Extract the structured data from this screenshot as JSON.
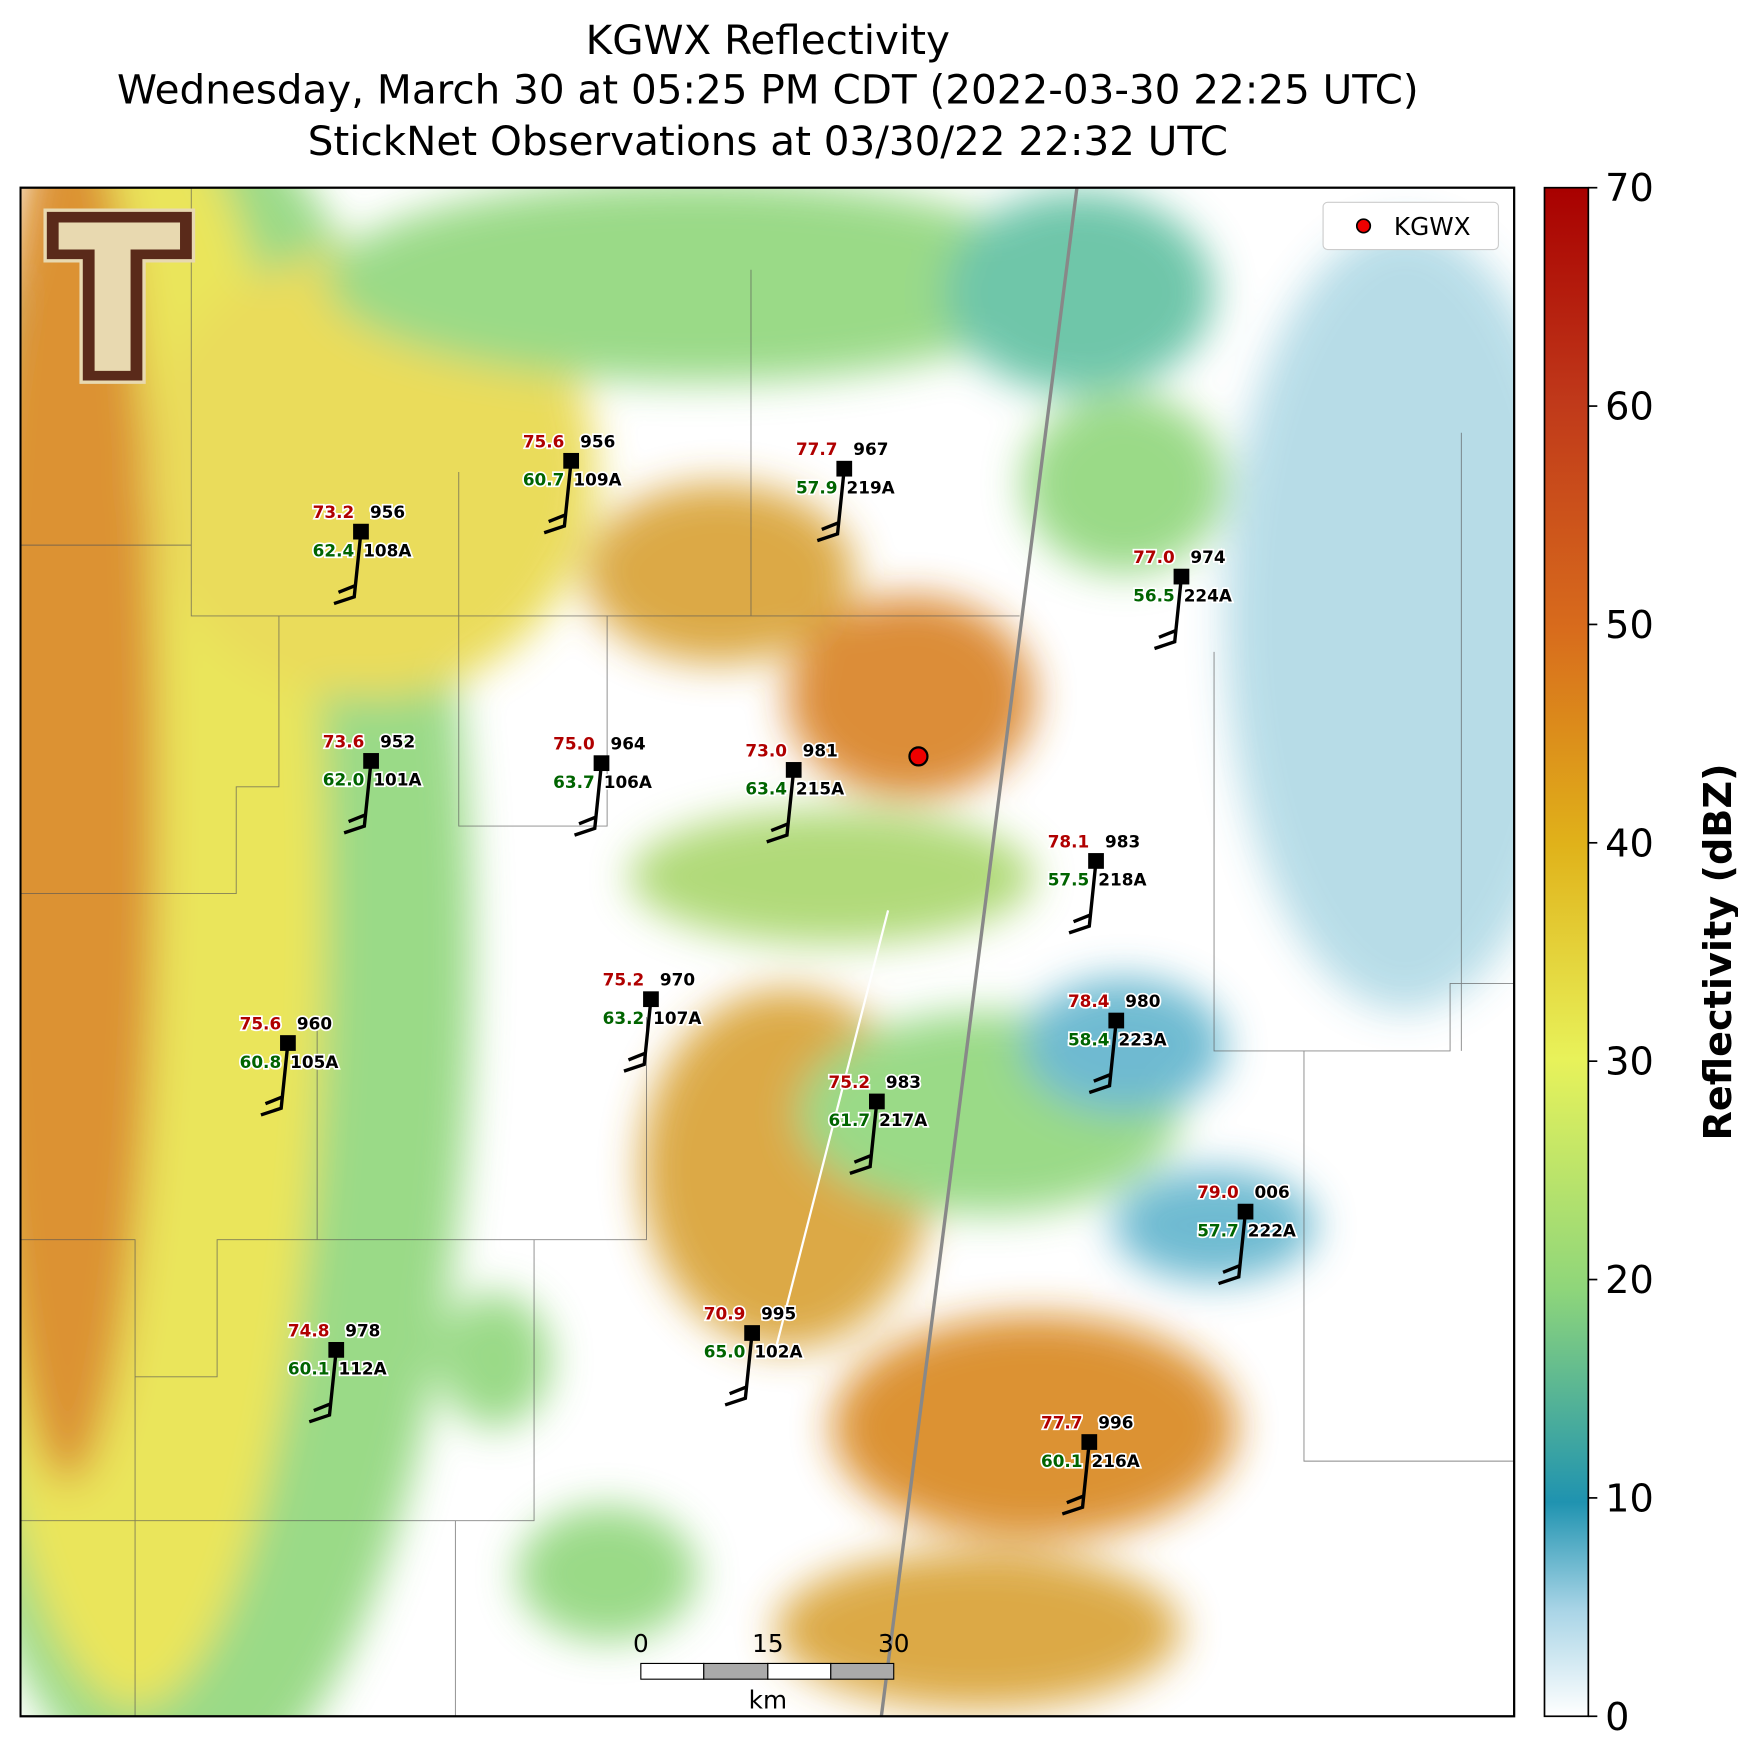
{
  "title": [
    "KGWX Reflectivity",
    "Wednesday, March 30 at 05:25 PM CDT (2022-03-30 22:25 UTC)",
    "StickNet Observations at 03/30/22 22:32 UTC"
  ],
  "legend": "KGWX",
  "colorbar": {
    "label": "Reflectivity (dBZ)",
    "clim": [
      0,
      70
    ],
    "ticks": [
      0,
      10,
      20,
      30,
      40,
      50,
      60,
      70
    ]
  },
  "scale_bar": {
    "labels": [
      "0",
      "15",
      "30"
    ],
    "unit": "km"
  },
  "stations": [
    {
      "temp": "75.6",
      "dew": "60.7",
      "pressure": "956",
      "id": "109A"
    },
    {
      "temp": "77.7",
      "dew": "57.9",
      "pressure": "967",
      "id": "219A"
    },
    {
      "temp": "73.2",
      "dew": "62.4",
      "pressure": "956",
      "id": "108A"
    },
    {
      "temp": "77.0",
      "dew": "56.5",
      "pressure": "974",
      "id": "224A"
    },
    {
      "temp": "73.6",
      "dew": "62.0",
      "pressure": "952",
      "id": "101A"
    },
    {
      "temp": "75.0",
      "dew": "63.7",
      "pressure": "964",
      "id": "106A"
    },
    {
      "temp": "73.0",
      "dew": "63.4",
      "pressure": "981",
      "id": "215A"
    },
    {
      "temp": "78.1",
      "dew": "57.5",
      "pressure": "983",
      "id": "218A"
    },
    {
      "temp": "75.2",
      "dew": "63.2",
      "pressure": "970",
      "id": "107A"
    },
    {
      "temp": "75.6",
      "dew": "60.8",
      "pressure": "960",
      "id": "105A"
    },
    {
      "temp": "78.4",
      "dew": "58.4",
      "pressure": "980",
      "id": "223A"
    },
    {
      "temp": "75.2",
      "dew": "61.7",
      "pressure": "983",
      "id": "217A"
    },
    {
      "temp": "79.0",
      "dew": "57.7",
      "pressure": "006",
      "id": "222A"
    },
    {
      "temp": "74.8",
      "dew": "60.1",
      "pressure": "978",
      "id": "112A"
    },
    {
      "temp": "70.9",
      "dew": "65.0",
      "pressure": "995",
      "id": "102A"
    },
    {
      "temp": "77.7",
      "dew": "60.1",
      "pressure": "996",
      "id": "216A"
    }
  ]
}
